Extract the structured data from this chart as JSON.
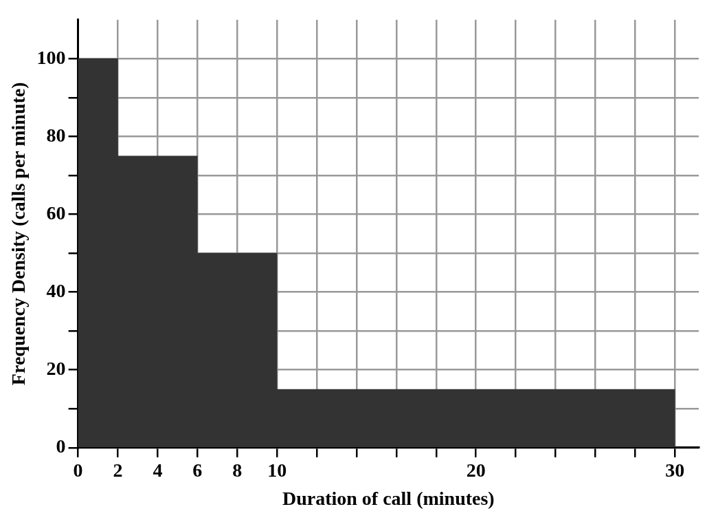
{
  "chart_data": {
    "type": "histogram",
    "xlabel": "Duration of call (minutes)",
    "ylabel": "Frequency Density (calls per minute)",
    "bins": [
      0,
      2,
      6,
      10,
      30
    ],
    "values": [
      100,
      75,
      50,
      15
    ],
    "color": "#333333",
    "xlim": [
      0,
      31.2
    ],
    "ylim": [
      0,
      110
    ],
    "xticks": [
      0,
      2,
      4,
      6,
      8,
      10,
      {
        "value": 12,
        "label": null
      },
      {
        "value": 14,
        "label": null
      },
      {
        "value": 16,
        "label": null
      },
      {
        "value": 18,
        "label": null
      },
      20,
      {
        "value": 22,
        "label": null
      },
      {
        "value": 24,
        "label": null
      },
      {
        "value": 26,
        "label": null
      },
      {
        "value": 28,
        "label": null
      },
      30
    ],
    "yticks": [
      0,
      {
        "value": 10,
        "label": null
      },
      20,
      {
        "value": 30,
        "label": null
      },
      40,
      {
        "value": 50,
        "label": null
      },
      60,
      {
        "value": 70,
        "label": null
      },
      80,
      {
        "value": 90,
        "label": null
      },
      100
    ],
    "grid": true
  }
}
